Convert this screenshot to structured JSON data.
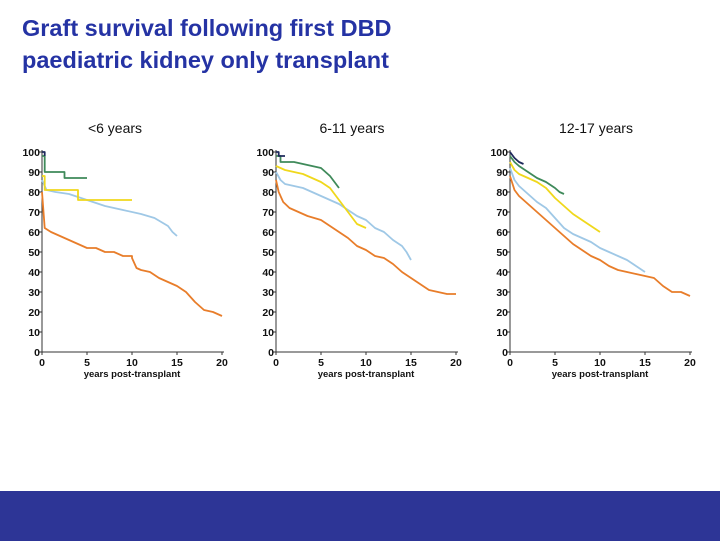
{
  "slide": {
    "title_line1": "Graft survival following first DBD",
    "title_line2": "paediatric kidney only transplant"
  },
  "colors": {
    "title": "#2533a4",
    "footer": "#2d3596",
    "axis": "#333333"
  },
  "chart_data": [
    {
      "type": "line",
      "title": "<6 years",
      "xlabel": "years post-transplant",
      "ylabel": "",
      "xlim": [
        0,
        20
      ],
      "ylim": [
        0,
        100
      ],
      "xticks": [
        0,
        5,
        10,
        15,
        20
      ],
      "yticks": [
        0,
        10,
        20,
        30,
        40,
        50,
        60,
        70,
        80,
        90,
        100
      ],
      "series": [
        {
          "name": "dark navy",
          "color": "#1f2a5c",
          "points": [
            [
              0,
              100
            ],
            [
              0.3,
              100
            ],
            [
              0.3,
              98
            ]
          ]
        },
        {
          "name": "dark green",
          "color": "#3f8a5a",
          "points": [
            [
              0,
              98
            ],
            [
              0.3,
              98
            ],
            [
              0.3,
              90
            ],
            [
              2.5,
              90
            ],
            [
              2.5,
              87
            ],
            [
              5,
              87
            ]
          ]
        },
        {
          "name": "yellow",
          "color": "#f0d81c",
          "points": [
            [
              0,
              88
            ],
            [
              0.3,
              88
            ],
            [
              0.3,
              81
            ],
            [
              4,
              81
            ],
            [
              4,
              76
            ],
            [
              10,
              76
            ]
          ]
        },
        {
          "name": "light blue",
          "color": "#9fc8e6",
          "points": [
            [
              0,
              86
            ],
            [
              0.5,
              81
            ],
            [
              1.5,
              80
            ],
            [
              3,
              79
            ],
            [
              5,
              76
            ],
            [
              7,
              73
            ],
            [
              9,
              71
            ],
            [
              11,
              69
            ],
            [
              12.5,
              67
            ],
            [
              14,
              63
            ],
            [
              14.5,
              60
            ],
            [
              15,
              58
            ]
          ]
        },
        {
          "name": "orange",
          "color": "#e87d2a",
          "points": [
            [
              0,
              80
            ],
            [
              0.3,
              62
            ],
            [
              1,
              60
            ],
            [
              2,
              58
            ],
            [
              3,
              56
            ],
            [
              4,
              54
            ],
            [
              5,
              52
            ],
            [
              6,
              52
            ],
            [
              7,
              50
            ],
            [
              8,
              50
            ],
            [
              9,
              48
            ],
            [
              10,
              48
            ],
            [
              10,
              47
            ],
            [
              10.5,
              42
            ],
            [
              11,
              41
            ],
            [
              12,
              40
            ],
            [
              13,
              37
            ],
            [
              14,
              35
            ],
            [
              15,
              33
            ],
            [
              16,
              30
            ],
            [
              17,
              25
            ],
            [
              17.5,
              23
            ],
            [
              18,
              21
            ],
            [
              19,
              20
            ],
            [
              20,
              18
            ]
          ]
        }
      ]
    },
    {
      "type": "line",
      "title": "6-11 years",
      "xlabel": "years post-transplant",
      "ylabel": "",
      "xlim": [
        0,
        20
      ],
      "ylim": [
        0,
        100
      ],
      "xticks": [
        0,
        5,
        10,
        15,
        20
      ],
      "yticks": [
        0,
        10,
        20,
        30,
        40,
        50,
        60,
        70,
        80,
        90,
        100
      ],
      "series": [
        {
          "name": "dark navy",
          "color": "#1f2a5c",
          "points": [
            [
              0,
              100
            ],
            [
              0.3,
              100
            ],
            [
              0.3,
              98
            ],
            [
              1,
              98
            ]
          ]
        },
        {
          "name": "dark green",
          "color": "#3f8a5a",
          "points": [
            [
              0,
              98
            ],
            [
              0.5,
              98
            ],
            [
              0.5,
              95
            ],
            [
              2,
              95
            ],
            [
              4,
              93
            ],
            [
              5,
              92
            ],
            [
              5.5,
              90
            ],
            [
              6,
              88
            ],
            [
              6.5,
              85
            ],
            [
              7,
              82
            ]
          ]
        },
        {
          "name": "yellow",
          "color": "#f0d81c",
          "points": [
            [
              0,
              93
            ],
            [
              1,
              91
            ],
            [
              2,
              90
            ],
            [
              3,
              89
            ],
            [
              4,
              87
            ],
            [
              5,
              85
            ],
            [
              6,
              82
            ],
            [
              7,
              76
            ],
            [
              8,
              70
            ],
            [
              9,
              64
            ],
            [
              9.5,
              63
            ],
            [
              10,
              62
            ]
          ]
        },
        {
          "name": "light blue",
          "color": "#9fc8e6",
          "points": [
            [
              0,
              90
            ],
            [
              0.5,
              86
            ],
            [
              1,
              84
            ],
            [
              2,
              83
            ],
            [
              3,
              82
            ],
            [
              4,
              80
            ],
            [
              5,
              78
            ],
            [
              6,
              76
            ],
            [
              7,
              74
            ],
            [
              8,
              71
            ],
            [
              9,
              68
            ],
            [
              10,
              66
            ],
            [
              11,
              62
            ],
            [
              12,
              60
            ],
            [
              13,
              56
            ],
            [
              14,
              53
            ],
            [
              14.5,
              50
            ],
            [
              15,
              46
            ]
          ]
        },
        {
          "name": "orange",
          "color": "#e87d2a",
          "points": [
            [
              0,
              86
            ],
            [
              0.3,
              80
            ],
            [
              0.8,
              75
            ],
            [
              1.5,
              72
            ],
            [
              2.5,
              70
            ],
            [
              3.5,
              68
            ],
            [
              5,
              66
            ],
            [
              6,
              63
            ],
            [
              7,
              60
            ],
            [
              8,
              57
            ],
            [
              9,
              53
            ],
            [
              10,
              51
            ],
            [
              11,
              48
            ],
            [
              12,
              47
            ],
            [
              13,
              44
            ],
            [
              14,
              40
            ],
            [
              15,
              37
            ],
            [
              16,
              34
            ],
            [
              17,
              31
            ],
            [
              18,
              30
            ],
            [
              19,
              29
            ],
            [
              20,
              29
            ]
          ]
        }
      ]
    },
    {
      "type": "line",
      "title": "12-17 years",
      "xlabel": "years post-transplant",
      "ylabel": "",
      "xlim": [
        0,
        20
      ],
      "ylim": [
        0,
        100
      ],
      "xticks": [
        0,
        5,
        10,
        15,
        20
      ],
      "yticks": [
        0,
        10,
        20,
        30,
        40,
        50,
        60,
        70,
        80,
        90,
        100
      ],
      "series": [
        {
          "name": "dark navy",
          "color": "#1f2a5c",
          "points": [
            [
              0,
              100
            ],
            [
              0.5,
              97
            ],
            [
              1,
              95
            ],
            [
              1.5,
              94
            ]
          ]
        },
        {
          "name": "dark green",
          "color": "#3f8a5a",
          "points": [
            [
              0,
              98
            ],
            [
              0.5,
              95
            ],
            [
              1,
              93
            ],
            [
              2,
              90
            ],
            [
              3,
              87
            ],
            [
              4,
              85
            ],
            [
              5,
              82
            ],
            [
              5.5,
              80
            ],
            [
              6,
              79
            ]
          ]
        },
        {
          "name": "yellow",
          "color": "#f0d81c",
          "points": [
            [
              0,
              95
            ],
            [
              0.5,
              91
            ],
            [
              1,
              89
            ],
            [
              2,
              87
            ],
            [
              3,
              85
            ],
            [
              4,
              82
            ],
            [
              5,
              77
            ],
            [
              6,
              73
            ],
            [
              7,
              69
            ],
            [
              8,
              66
            ],
            [
              9,
              63
            ],
            [
              10,
              60
            ]
          ]
        },
        {
          "name": "light blue",
          "color": "#9fc8e6",
          "points": [
            [
              0,
              92
            ],
            [
              0.5,
              86
            ],
            [
              1,
              83
            ],
            [
              2,
              79
            ],
            [
              3,
              75
            ],
            [
              4,
              72
            ],
            [
              5,
              67
            ],
            [
              6,
              62
            ],
            [
              7,
              59
            ],
            [
              8,
              57
            ],
            [
              9,
              55
            ],
            [
              10,
              52
            ],
            [
              11,
              50
            ],
            [
              12,
              48
            ],
            [
              13,
              46
            ],
            [
              14,
              43
            ],
            [
              15,
              40
            ]
          ]
        },
        {
          "name": "orange",
          "color": "#e87d2a",
          "points": [
            [
              0,
              88
            ],
            [
              0.5,
              81
            ],
            [
              1,
              78
            ],
            [
              2,
              74
            ],
            [
              3,
              70
            ],
            [
              4,
              66
            ],
            [
              5,
              62
            ],
            [
              6,
              58
            ],
            [
              7,
              54
            ],
            [
              8,
              51
            ],
            [
              9,
              48
            ],
            [
              10,
              46
            ],
            [
              11,
              43
            ],
            [
              12,
              41
            ],
            [
              13,
              40
            ],
            [
              14,
              39
            ],
            [
              15,
              38
            ],
            [
              16,
              37
            ],
            [
              17,
              33
            ],
            [
              18,
              30
            ],
            [
              19,
              30
            ],
            [
              20,
              28
            ]
          ]
        }
      ]
    }
  ]
}
